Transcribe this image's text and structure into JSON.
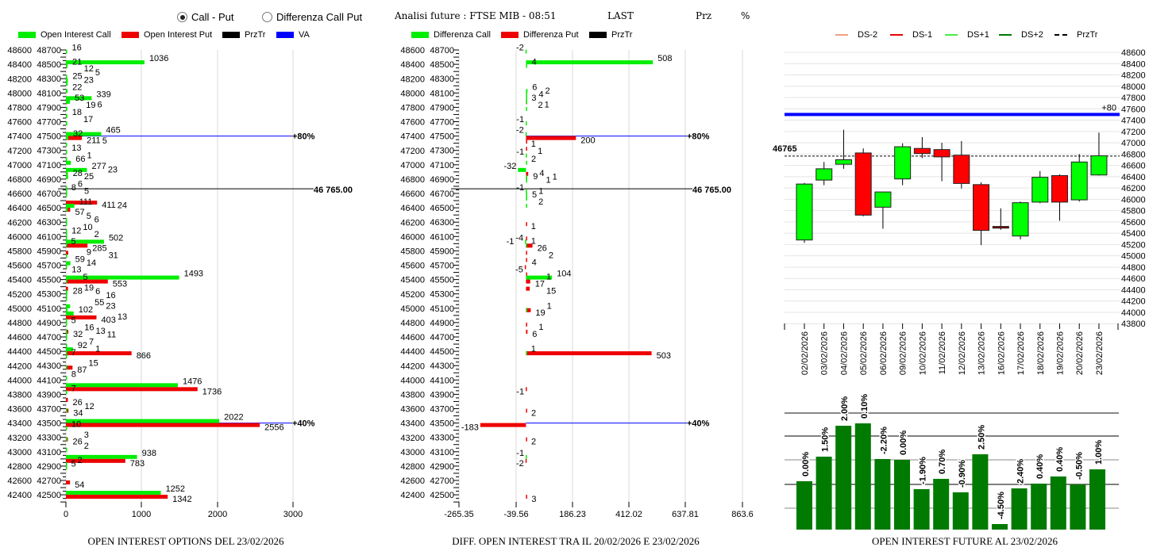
{
  "header": {
    "radio_call_put": "Call - Put",
    "radio_diff": "Differenza Call Put",
    "analysis_title": "Analisi future : FTSE MIB - 08:51",
    "last_label": "LAST",
    "prz_label": "Prz",
    "pct_label": "%"
  },
  "colors": {
    "call": "#00ee00",
    "put": "#ee0000",
    "prztr": "#000000",
    "va": "#0000ff",
    "candle_up": "#00ff00",
    "candle_down": "#ff0000",
    "oi_bar": "#007a00"
  },
  "chart_data": [
    {
      "type": "bar",
      "orientation": "horizontal",
      "title": "OPEN INTEREST OPTIONS DEL 23/02/2026",
      "legend": [
        "Open Interest Call",
        "Open Interest Put",
        "PrzTr",
        "VA"
      ],
      "xlim": [
        0,
        3000
      ],
      "xticks": [
        "0",
        "1000",
        "2000",
        "3000"
      ],
      "ylim": [
        42400,
        48700
      ],
      "prztr": {
        "value": 46765,
        "label": "46 765.00"
      },
      "va_lines": [
        {
          "strike": 47500,
          "label": "+80%"
        },
        {
          "strike": 43500,
          "label": "+40%"
        }
      ],
      "columns": [
        "strike",
        "call",
        "put"
      ],
      "rows": [
        [
          48650,
          16,
          0
        ],
        [
          48500,
          1036,
          12
        ],
        [
          48450,
          21,
          0
        ],
        [
          48300,
          5,
          0
        ],
        [
          48250,
          25,
          0
        ],
        [
          48200,
          23,
          0
        ],
        [
          48100,
          22,
          0
        ],
        [
          48000,
          339,
          6
        ],
        [
          47950,
          53,
          0
        ],
        [
          47850,
          19,
          0
        ],
        [
          47750,
          18,
          0
        ],
        [
          47650,
          17,
          0
        ],
        [
          47500,
          465,
          211
        ],
        [
          47450,
          32,
          0
        ],
        [
          47350,
          5,
          0
        ],
        [
          47250,
          13,
          0
        ],
        [
          47150,
          1,
          0
        ],
        [
          47100,
          66,
          0
        ],
        [
          47000,
          277,
          25
        ],
        [
          46950,
          23,
          0
        ],
        [
          46900,
          28,
          0
        ],
        [
          46750,
          6,
          0
        ],
        [
          46700,
          8,
          0
        ],
        [
          46650,
          5,
          0
        ],
        [
          46600,
          0,
          411
        ],
        [
          46500,
          111,
          57
        ],
        [
          46450,
          24,
          0
        ],
        [
          46300,
          5,
          0
        ],
        [
          46250,
          6,
          0
        ],
        [
          46150,
          10,
          0
        ],
        [
          46100,
          12,
          0
        ],
        [
          46050,
          2,
          0
        ],
        [
          46000,
          502,
          285
        ],
        [
          45950,
          5,
          0
        ],
        [
          45900,
          0,
          31
        ],
        [
          45800,
          9,
          0
        ],
        [
          45700,
          59,
          13
        ],
        [
          45650,
          14,
          0
        ],
        [
          45500,
          1493,
          553
        ],
        [
          45450,
          5,
          0
        ],
        [
          45400,
          0,
          28
        ],
        [
          45300,
          19,
          0
        ],
        [
          45250,
          6,
          0
        ],
        [
          45200,
          16,
          0
        ],
        [
          45100,
          55,
          0
        ],
        [
          45050,
          23,
          0
        ],
        [
          45000,
          102,
          403
        ],
        [
          44900,
          13,
          0
        ],
        [
          44850,
          5,
          0
        ],
        [
          44800,
          0,
          32
        ],
        [
          44750,
          16,
          0
        ],
        [
          44700,
          13,
          0
        ],
        [
          44650,
          11,
          0
        ],
        [
          44550,
          7,
          0
        ],
        [
          44500,
          92,
          866
        ],
        [
          44450,
          1,
          0
        ],
        [
          44400,
          7,
          0
        ],
        [
          44300,
          0,
          87
        ],
        [
          44250,
          15,
          0
        ],
        [
          44100,
          8,
          0
        ],
        [
          44000,
          1476,
          1736
        ],
        [
          43900,
          7,
          0
        ],
        [
          43850,
          0,
          26
        ],
        [
          43700,
          0,
          34
        ],
        [
          43650,
          12,
          0
        ],
        [
          43500,
          2022,
          2556
        ],
        [
          43400,
          10,
          0
        ],
        [
          43300,
          0,
          26
        ],
        [
          43250,
          3,
          0
        ],
        [
          43100,
          2,
          0
        ],
        [
          43000,
          938,
          783
        ],
        [
          42900,
          2,
          0
        ],
        [
          42850,
          5,
          0
        ],
        [
          42700,
          0,
          54
        ],
        [
          42500,
          1252,
          1342
        ]
      ]
    },
    {
      "type": "bar",
      "orientation": "horizontal",
      "title": "DIFF. OPEN INTEREST TRA IL 20/02/2026 E 23/02/2026",
      "legend": [
        "Differenza Call",
        "Differenza Put",
        "PrzTr"
      ],
      "xlim": [
        -265.35,
        863.6
      ],
      "xticks": [
        "-265.35",
        "-39.56",
        "186.23",
        "412.02",
        "637.81",
        "863.6"
      ],
      "ylim": [
        42400,
        48700
      ],
      "prztr": {
        "value": 46765,
        "label": "46 765.00"
      },
      "va_lines": [
        {
          "strike": 47500,
          "label": "+80%"
        },
        {
          "strike": 43500,
          "label": "+40%"
        }
      ],
      "columns": [
        "strike",
        "diff_call",
        "diff_put"
      ],
      "rows": [
        [
          48650,
          -2,
          0
        ],
        [
          48500,
          508,
          0
        ],
        [
          48450,
          4,
          0
        ],
        [
          48100,
          6,
          0
        ],
        [
          48050,
          2,
          0
        ],
        [
          48000,
          4,
          1
        ],
        [
          47950,
          3,
          0
        ],
        [
          47850,
          2,
          0
        ],
        [
          47650,
          -1,
          0
        ],
        [
          47500,
          -2,
          200
        ],
        [
          47450,
          0,
          1
        ],
        [
          47350,
          0,
          1
        ],
        [
          47200,
          -1,
          0
        ],
        [
          47100,
          2,
          0
        ],
        [
          47000,
          -32,
          9
        ],
        [
          46950,
          0,
          1
        ],
        [
          46900,
          4,
          0
        ],
        [
          46850,
          1,
          0
        ],
        [
          46700,
          -1,
          0
        ],
        [
          46650,
          1,
          0
        ],
        [
          46600,
          5,
          0
        ],
        [
          46500,
          2,
          0
        ],
        [
          46300,
          0,
          1
        ],
        [
          46100,
          0,
          1
        ],
        [
          46000,
          -4,
          26
        ],
        [
          45950,
          -1,
          0
        ],
        [
          45900,
          0,
          2
        ],
        [
          45800,
          0,
          4
        ],
        [
          45700,
          0,
          -5
        ],
        [
          45600,
          0,
          1
        ],
        [
          45500,
          104,
          17
        ],
        [
          45400,
          0,
          15
        ],
        [
          45100,
          0,
          19
        ],
        [
          45050,
          1,
          0
        ],
        [
          44900,
          0,
          1
        ],
        [
          44800,
          0,
          6
        ],
        [
          44500,
          0,
          503
        ],
        [
          44450,
          1,
          0
        ],
        [
          44000,
          0,
          -1
        ],
        [
          43700,
          0,
          2
        ],
        [
          43500,
          0,
          -183
        ],
        [
          43300,
          0,
          2
        ],
        [
          43000,
          -1,
          -2
        ],
        [
          42500,
          0,
          3
        ]
      ]
    },
    {
      "type": "candlestick",
      "legend": [
        "DS-2",
        "DS-1",
        "DS+1",
        "DS+2",
        "PrzTr"
      ],
      "legend_colors": [
        "#f0a080",
        "#ee0000",
        "#44ee44",
        "#007a00",
        "#000000"
      ],
      "ylim": [
        43800,
        48600
      ],
      "yticks": [
        48600,
        48400,
        48200,
        48000,
        47800,
        47600,
        47400,
        47200,
        47000,
        46800,
        46600,
        46400,
        46200,
        46000,
        45800,
        45600,
        45400,
        45200,
        45000,
        44800,
        44600,
        44400,
        44200,
        44000,
        43800
      ],
      "prztr": {
        "value": 46765,
        "label": "46765"
      },
      "va_line": {
        "value": 47500,
        "label": "+80"
      },
      "columns": [
        "date",
        "open",
        "high",
        "low",
        "close"
      ],
      "candles": [
        [
          "02/02/2026",
          45280,
          46290,
          45230,
          46270
        ],
        [
          "03/02/2026",
          46340,
          46660,
          46250,
          46540
        ],
        [
          "04/02/2026",
          46620,
          47230,
          46540,
          46700
        ],
        [
          "05/02/2026",
          46820,
          46900,
          45700,
          45720
        ],
        [
          "06/02/2026",
          45860,
          46130,
          45480,
          46130
        ],
        [
          "09/02/2026",
          46360,
          46990,
          46250,
          46930
        ],
        [
          "10/02/2026",
          46900,
          47100,
          46730,
          46810
        ],
        [
          "11/02/2026",
          46880,
          47000,
          46320,
          46750
        ],
        [
          "12/02/2026",
          46780,
          47030,
          46190,
          46280
        ],
        [
          "13/02/2026",
          46260,
          46300,
          45190,
          45450
        ],
        [
          "16/02/2026",
          45520,
          45840,
          45460,
          45490
        ],
        [
          "17/02/2026",
          45350,
          45960,
          45290,
          45940
        ],
        [
          "18/02/2026",
          45950,
          46500,
          45930,
          46390
        ],
        [
          "19/02/2026",
          46420,
          46440,
          45620,
          45950
        ],
        [
          "20/02/2026",
          45990,
          46800,
          45960,
          46660
        ],
        [
          "23/02/2026",
          46430,
          47180,
          46420,
          46770
        ]
      ]
    },
    {
      "type": "bar",
      "title": "OPEN INTEREST FUTURE AL 23/02/2026",
      "categories": [
        "02/02/2026",
        "03/02/2026",
        "04/02/2026",
        "05/02/2026",
        "06/02/2026",
        "09/02/2026",
        "10/02/2026",
        "11/02/2026",
        "12/02/2026",
        "13/02/2026",
        "16/02/2026",
        "17/02/2026",
        "18/02/2026",
        "19/02/2026",
        "20/02/2026",
        "23/02/2026"
      ],
      "values_relative": [
        61,
        92,
        131,
        134,
        89,
        88,
        51,
        64,
        47,
        95,
        7,
        52,
        58,
        67,
        57,
        76
      ],
      "labels": [
        "0.00%",
        "1.50%",
        "2.00%",
        "0.10%",
        "-2.20%",
        "0.00%",
        "-1.90%",
        "0.70%",
        "-0.90%",
        "2.50%",
        "-4.50%",
        "2.40%",
        "0.40%",
        "0.40%",
        "-0.50%",
        "1.00%"
      ]
    }
  ]
}
